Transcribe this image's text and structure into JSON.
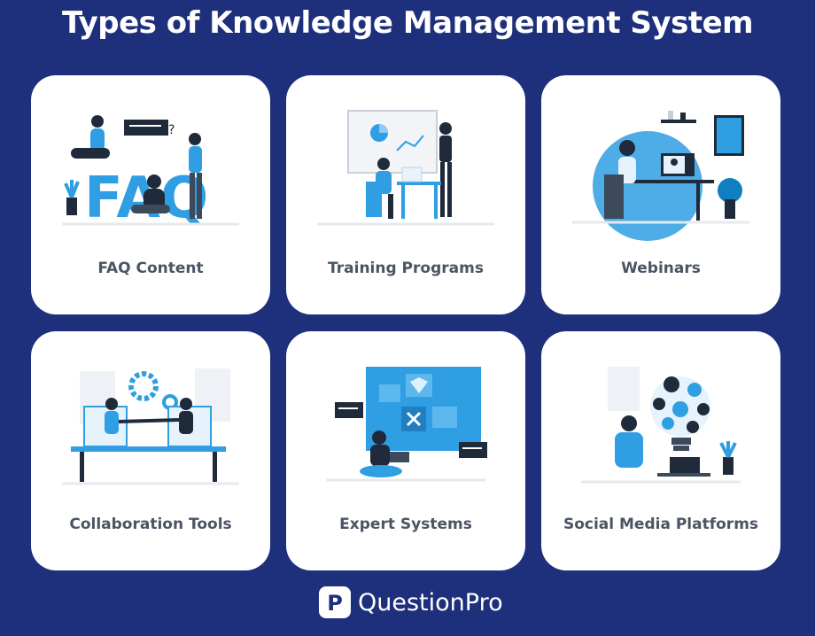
{
  "header": {
    "title": "Types of  Knowledge Management System"
  },
  "cards": [
    {
      "label": "FAQ Content",
      "icon": "faq-illustration"
    },
    {
      "label": "Training Programs",
      "icon": "training-illustration"
    },
    {
      "label": "Webinars",
      "icon": "webinar-illustration"
    },
    {
      "label": "Collaboration Tools",
      "icon": "collaboration-illustration"
    },
    {
      "label": "Expert Systems",
      "icon": "expert-systems-illustration"
    },
    {
      "label": "Social Media  Platforms",
      "icon": "social-media-illustration"
    }
  ],
  "footer": {
    "brand": "QuestionPro",
    "logo_letter": "P"
  },
  "colors": {
    "background": "#1e2f7c",
    "accent": "#2f9ee3",
    "dark": "#1f2a3a",
    "label": "#4b5565"
  }
}
